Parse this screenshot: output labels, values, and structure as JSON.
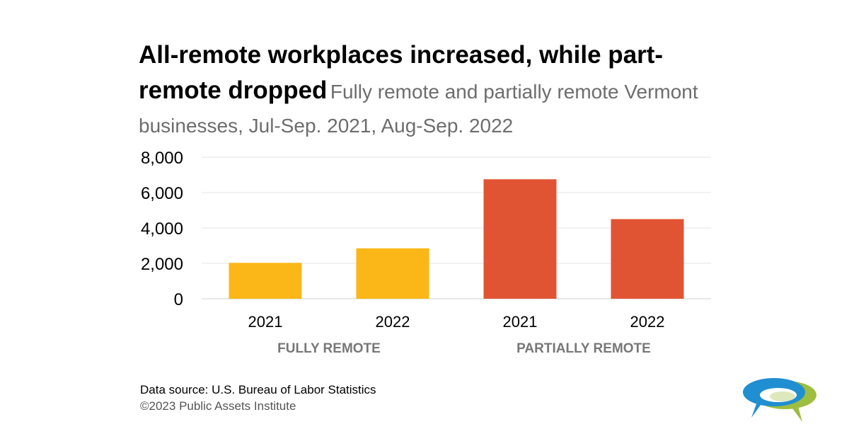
{
  "chart_data": {
    "type": "bar",
    "title": "All-remote workplaces increased, while part-remote dropped",
    "subtitle": "Fully remote and partially remote Vermont businesses, Jul-Sep. 2021, Aug-Sep. 2022",
    "groups": [
      {
        "label": "FULLY REMOTE",
        "color": "#FBB718",
        "bars": [
          {
            "category": "2021",
            "value": 2030
          },
          {
            "category": "2022",
            "value": 2850
          }
        ]
      },
      {
        "label": "PARTIALLY REMOTE",
        "color": "#E15433",
        "bars": [
          {
            "category": "2021",
            "value": 6750
          },
          {
            "category": "2022",
            "value": 4500
          }
        ]
      }
    ],
    "ylim": [
      0,
      8000
    ],
    "yticks": [
      0,
      2000,
      4000,
      6000,
      8000
    ],
    "ytick_labels": [
      "0",
      "2,000",
      "4,000",
      "6,000",
      "8,000"
    ],
    "grid": true
  },
  "footer": {
    "source": "Data source: U.S. Bureau of Labor Statistics",
    "copyright": "©2023 Public Assets Institute"
  },
  "logo": {
    "icon": "speech-bubbles-logo",
    "colors": [
      "#1F8FD1",
      "#9DBE3E"
    ]
  }
}
